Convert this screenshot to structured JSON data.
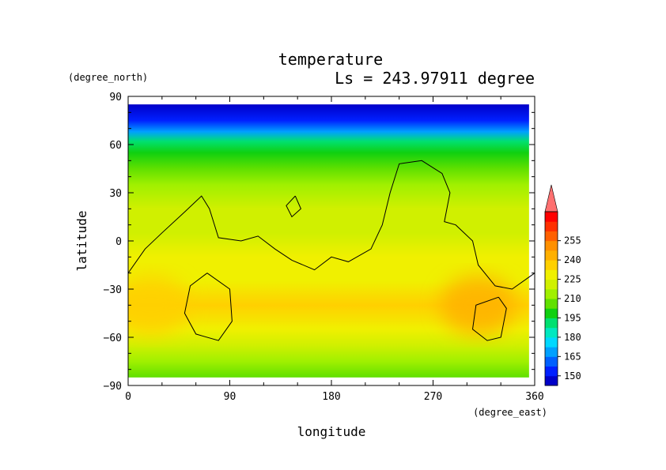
{
  "chart_data": {
    "type": "heatmap",
    "title": "temperature",
    "subtitle": "Ls = 243.97911 degree",
    "xlabel": "longitude",
    "ylabel": "latitude",
    "x_units": "(degree_east)",
    "y_units": "(degree_north)",
    "xlim": [
      0,
      360
    ],
    "ylim": [
      -90,
      90
    ],
    "x_ticks": [
      0,
      90,
      180,
      270,
      360
    ],
    "x_tick_labels": [
      "0",
      "90",
      "180",
      "270",
      "360"
    ],
    "y_ticks": [
      90,
      60,
      30,
      0,
      -30,
      -60,
      -90
    ],
    "y_tick_labels": [
      "90",
      "60",
      "30",
      "0",
      "−30",
      "−60",
      "−90"
    ],
    "colorbar_levels": [
      150,
      165,
      180,
      195,
      210,
      225,
      240,
      255
    ],
    "colorbar_labels": [
      "150",
      "165",
      "180",
      "195",
      "210",
      "225",
      "240",
      "255"
    ],
    "colorbar_colors": [
      "#0000c8",
      "#0020ff",
      "#0060ff",
      "#00a0ff",
      "#00d8ff",
      "#00e8c0",
      "#00e070",
      "#10d010",
      "#60e000",
      "#a0f000",
      "#d0f000",
      "#f0f000",
      "#ffd000",
      "#ffb000",
      "#ff9000",
      "#ff6000",
      "#ff3000",
      "#ff0000",
      "#ff7070"
    ],
    "latitude_profile": [
      {
        "lat": 85,
        "value": 147
      },
      {
        "lat": 75,
        "value": 153
      },
      {
        "lat": 68,
        "value": 168
      },
      {
        "lat": 62,
        "value": 185
      },
      {
        "lat": 55,
        "value": 198
      },
      {
        "lat": 45,
        "value": 205
      },
      {
        "lat": 35,
        "value": 208
      },
      {
        "lat": 20,
        "value": 214
      },
      {
        "lat": 5,
        "value": 219
      },
      {
        "lat": -10,
        "value": 224
      },
      {
        "lat": -25,
        "value": 228
      },
      {
        "lat": -40,
        "value": 229
      },
      {
        "lat": -55,
        "value": 226
      },
      {
        "lat": -65,
        "value": 220
      },
      {
        "lat": -75,
        "value": 212
      },
      {
        "lat": -85,
        "value": 205
      }
    ],
    "warm_regions": [
      {
        "lon": 20,
        "lat": -40,
        "value": 236
      },
      {
        "lon": 310,
        "lat": -40,
        "value": 240
      }
    ],
    "contour_lines": [
      [
        [
          0,
          -20
        ],
        [
          15,
          -5
        ],
        [
          30,
          5
        ],
        [
          50,
          18
        ],
        [
          65,
          28
        ],
        [
          72,
          20
        ],
        [
          80,
          2
        ],
        [
          100,
          0
        ],
        [
          115,
          3
        ],
        [
          130,
          -5
        ],
        [
          145,
          -12
        ],
        [
          165,
          -18
        ],
        [
          180,
          -10
        ],
        [
          195,
          -13
        ],
        [
          215,
          -5
        ],
        [
          225,
          10
        ],
        [
          232,
          30
        ],
        [
          240,
          48
        ],
        [
          260,
          50
        ],
        [
          278,
          42
        ],
        [
          285,
          30
        ],
        [
          280,
          12
        ],
        [
          290,
          10
        ],
        [
          305,
          0
        ],
        [
          310,
          -15
        ],
        [
          325,
          -28
        ],
        [
          340,
          -30
        ],
        [
          360,
          -20
        ]
      ],
      [
        [
          70,
          -20
        ],
        [
          90,
          -30
        ],
        [
          92,
          -50
        ],
        [
          80,
          -62
        ],
        [
          60,
          -58
        ],
        [
          50,
          -45
        ],
        [
          55,
          -28
        ],
        [
          70,
          -20
        ]
      ],
      [
        [
          328,
          -35
        ],
        [
          335,
          -42
        ],
        [
          330,
          -60
        ],
        [
          318,
          -62
        ],
        [
          305,
          -55
        ],
        [
          308,
          -40
        ],
        [
          328,
          -35
        ]
      ],
      [
        [
          148,
          28
        ],
        [
          153,
          20
        ],
        [
          145,
          15
        ],
        [
          140,
          22
        ],
        [
          148,
          28
        ]
      ]
    ]
  }
}
